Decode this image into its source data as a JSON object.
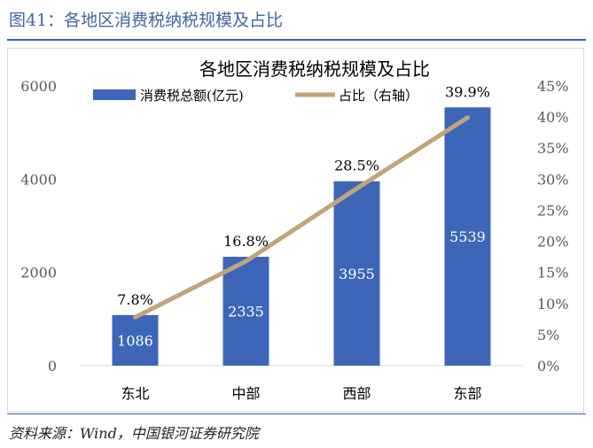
{
  "figure": {
    "title": "图41：各地区消费税纳税规模及占比",
    "source": "资料来源：Wind，中国银河证券研究院"
  },
  "colors": {
    "bar": "#3d66b8",
    "line": "#c2a47a",
    "title": "#41679e",
    "rule": "#3a63a6",
    "text": "#595959",
    "bar_label": "#ffffff"
  },
  "chart_data": {
    "type": "bar",
    "title": "各地区消费税纳税规模及占比",
    "categories": [
      "东北",
      "中部",
      "西部",
      "东部"
    ],
    "series": [
      {
        "name": "消费税总额(亿元)",
        "type": "bar",
        "axis": "left",
        "values": [
          1086,
          2335,
          3955,
          5539
        ],
        "labels": [
          "1086",
          "2335",
          "3955",
          "5539"
        ]
      },
      {
        "name": "占比（右轴）",
        "type": "line",
        "axis": "right",
        "values": [
          7.8,
          16.8,
          28.5,
          39.9
        ],
        "labels": [
          "7.8%",
          "16.8%",
          "28.5%",
          "39.9%"
        ]
      }
    ],
    "y_left": {
      "min": 0,
      "max": 6000,
      "ticks": [
        0,
        2000,
        4000,
        6000
      ],
      "tick_labels": [
        "0",
        "2000",
        "4000",
        "6000"
      ]
    },
    "y_right": {
      "min": 0,
      "max": 45,
      "ticks": [
        0,
        5,
        10,
        15,
        20,
        25,
        30,
        35,
        40,
        45
      ],
      "tick_labels": [
        "0%",
        "5%",
        "10%",
        "15%",
        "20%",
        "25%",
        "30%",
        "35%",
        "40%",
        "45%"
      ]
    },
    "legend_position": "top-left",
    "grid": false
  }
}
